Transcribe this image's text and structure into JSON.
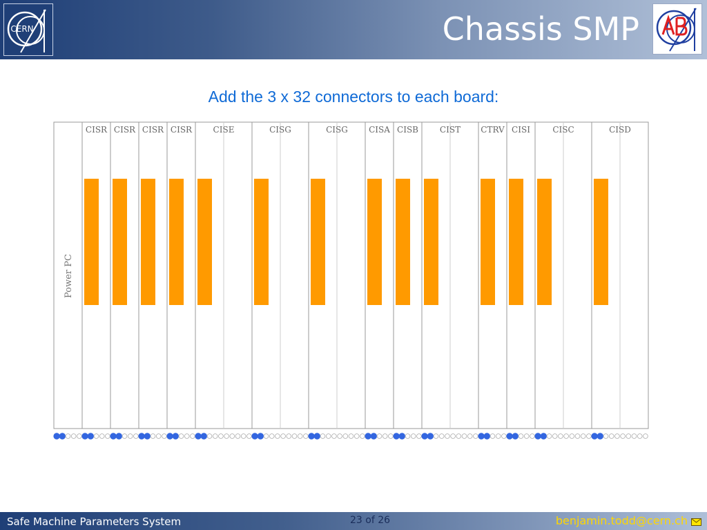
{
  "header": {
    "title": "Chassis SMP",
    "logo_left_text": "CERN"
  },
  "subtitle": "Add the 3 x 32 connectors to each board:",
  "diagram": {
    "power_pc_label": "Power PC",
    "boards": [
      {
        "label": "CISR",
        "slots": 1,
        "connector": true
      },
      {
        "label": "CISR",
        "slots": 1,
        "connector": true
      },
      {
        "label": "CISR",
        "slots": 1,
        "connector": true
      },
      {
        "label": "CISR",
        "slots": 1,
        "connector": true
      },
      {
        "label": "CISE",
        "slots": 2,
        "connector": true
      },
      {
        "label": "CISG",
        "slots": 2,
        "connector": true
      },
      {
        "label": "CISG",
        "slots": 2,
        "connector": true
      },
      {
        "label": "CISA",
        "slots": 1,
        "connector": true
      },
      {
        "label": "CISB",
        "slots": 1,
        "connector": true
      },
      {
        "label": "CIST",
        "slots": 2,
        "connector": true
      },
      {
        "label": "CTRV",
        "slots": 1,
        "connector": true
      },
      {
        "label": "CISI",
        "slots": 1,
        "connector": true
      },
      {
        "label": "CISC",
        "slots": 2,
        "connector": true
      },
      {
        "label": "CISD",
        "slots": 2,
        "connector": true
      }
    ],
    "colors": {
      "connector": "#ff9a00",
      "led_on": "#3366e0",
      "led_off": "#ffffff",
      "board_border": "#999999"
    }
  },
  "footer": {
    "left": "Safe Machine Parameters System",
    "page": "23 of 26",
    "email": "benjamin.todd@cern.ch"
  }
}
